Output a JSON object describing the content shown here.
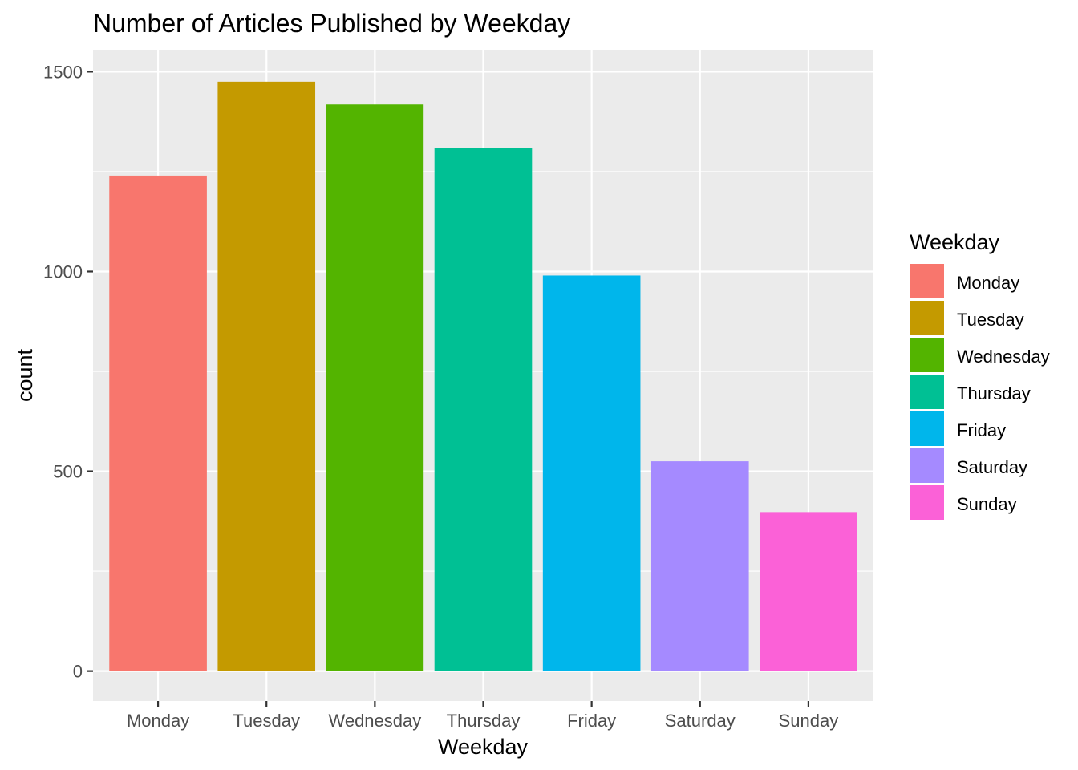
{
  "chart_data": {
    "type": "bar",
    "title": "Number of Articles Published by Weekday",
    "xlabel": "Weekday",
    "ylabel": "count",
    "categories": [
      "Monday",
      "Tuesday",
      "Wednesday",
      "Thursday",
      "Friday",
      "Saturday",
      "Sunday"
    ],
    "values": [
      1240,
      1475,
      1418,
      1310,
      990,
      525,
      398
    ],
    "colors": [
      "#F8766D",
      "#C49A00",
      "#53B400",
      "#00C094",
      "#00B6EB",
      "#A58AFF",
      "#FB61D7"
    ],
    "ylim": [
      -75,
      1555
    ],
    "yticks": [
      0,
      500,
      1000,
      1500
    ],
    "ytick_labels": [
      "0",
      "500",
      "1000",
      "1500"
    ],
    "grid": true,
    "legend": {
      "title": "Weekday",
      "placement": "right",
      "entries": [
        "Monday",
        "Tuesday",
        "Wednesday",
        "Thursday",
        "Friday",
        "Saturday",
        "Sunday"
      ]
    }
  }
}
